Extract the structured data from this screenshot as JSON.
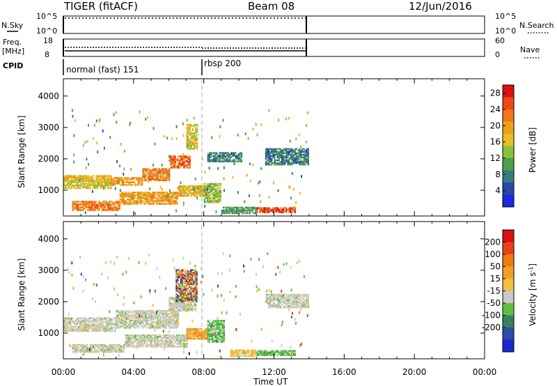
{
  "header": {
    "title": "TIGER (fitACF)",
    "beam": "Beam 08",
    "date": "12/Jun/2016"
  },
  "params_panel": {
    "nsky_label": "N.Sky",
    "nsky_ticks": [
      "10^5",
      "10^0"
    ],
    "nsearch_label": "N.Search",
    "nsearch_ticks": [
      "10^5",
      "10^0"
    ],
    "freq_label": "Freq.",
    "freq_unit": "[MHz]",
    "freq_ticks": [
      "18",
      "8"
    ],
    "nave_label": "Nave",
    "nave_ticks": [
      "60",
      "0"
    ]
  },
  "cpid": {
    "label": "CPID",
    "modes": [
      {
        "name": "normal (fast) 151",
        "start_hour": 0
      },
      {
        "name": "rbsp 200",
        "start_hour": 8
      }
    ]
  },
  "chart_data": [
    {
      "type": "heatmap",
      "panel": "power",
      "xlabel": "",
      "ylabel": "Slant Range [km]",
      "xlim": [
        0,
        24
      ],
      "ylim": [
        180,
        4550
      ],
      "yticks": [
        1000,
        2000,
        3000,
        4000
      ],
      "data_end_hour": 14,
      "colorbar": {
        "label": "Power [dB]",
        "ticks": [
          4,
          8,
          12,
          16,
          20,
          24,
          28
        ],
        "range": [
          0,
          30
        ],
        "colors": [
          "#1a2adc",
          "#2848a8",
          "#3a7c7c",
          "#48a050",
          "#88c040",
          "#e6c020",
          "#f0a018",
          "#f07818",
          "#ee4818",
          "#dd1010"
        ]
      },
      "regions": [
        {
          "t0": 0.0,
          "t1": 2.7,
          "r0": 1300,
          "r1": 1480,
          "level": 18
        },
        {
          "t0": 0.0,
          "t1": 2.7,
          "r0": 1050,
          "r1": 1300,
          "level": 16
        },
        {
          "t0": 2.7,
          "t1": 4.5,
          "r0": 1150,
          "r1": 1380,
          "level": 20
        },
        {
          "t0": 4.5,
          "t1": 6.0,
          "r0": 1300,
          "r1": 1700,
          "level": 22
        },
        {
          "t0": 6.0,
          "t1": 7.2,
          "r0": 1700,
          "r1": 2100,
          "level": 24
        },
        {
          "t0": 7.0,
          "t1": 7.6,
          "r0": 2300,
          "r1": 3100,
          "level": 16
        },
        {
          "t0": 0.5,
          "t1": 3.2,
          "r0": 350,
          "r1": 650,
          "level": 22
        },
        {
          "t0": 3.2,
          "t1": 6.5,
          "r0": 550,
          "r1": 950,
          "level": 20
        },
        {
          "t0": 6.5,
          "t1": 8.2,
          "r0": 800,
          "r1": 1150,
          "level": 18
        },
        {
          "t0": 8.0,
          "t1": 9.0,
          "r0": 600,
          "r1": 1200,
          "level": 14
        },
        {
          "t0": 11.0,
          "t1": 13.2,
          "r0": 280,
          "r1": 450,
          "level": 26
        },
        {
          "t0": 9.0,
          "t1": 11.0,
          "r0": 250,
          "r1": 450,
          "level": 10
        },
        {
          "t0": 11.5,
          "t1": 14.0,
          "r0": 1800,
          "r1": 2300,
          "level": 8
        },
        {
          "t0": 8.2,
          "t1": 10.2,
          "r0": 1900,
          "r1": 2200,
          "level": 8
        }
      ]
    },
    {
      "type": "heatmap",
      "panel": "velocity",
      "xlabel": "Time UT",
      "ylabel": "Slant Range [km]",
      "xlim": [
        0,
        24
      ],
      "ylim": [
        180,
        4550
      ],
      "yticks": [
        1000,
        2000,
        3000,
        4000
      ],
      "xticks": [
        "00:00",
        "04:00",
        "08:00",
        "12:00",
        "16:00",
        "20:00",
        "00:00"
      ],
      "data_end_hour": 14,
      "colorbar": {
        "label": "Velocity [m s^-1]",
        "ticks": [
          "200",
          "100",
          "50",
          "15",
          "-15",
          "-50",
          "-100",
          "-200"
        ],
        "colors": [
          "#1a2ad0",
          "#2c4ea8",
          "#3a8060",
          "#5ec040",
          "#c8c8c8",
          "#f0c040",
          "#f0a020",
          "#f07818",
          "#ee4018",
          "#dd1010"
        ]
      },
      "regions": [
        {
          "t0": 0.0,
          "t1": 3.0,
          "r0": 1050,
          "r1": 1480,
          "level": "gray"
        },
        {
          "t0": 3.0,
          "t1": 6.5,
          "r0": 1150,
          "r1": 1700,
          "level": "gray"
        },
        {
          "t0": 6.0,
          "t1": 7.5,
          "r0": 1700,
          "r1": 2150,
          "level": "gray"
        },
        {
          "t0": 0.5,
          "t1": 3.5,
          "r0": 380,
          "r1": 650,
          "level": "gray"
        },
        {
          "t0": 3.5,
          "t1": 7.0,
          "r0": 550,
          "r1": 950,
          "level": "gray"
        },
        {
          "t0": 7.0,
          "t1": 8.2,
          "r0": 800,
          "r1": 1150,
          "level": "orange"
        },
        {
          "t0": 8.2,
          "t1": 9.2,
          "r0": 700,
          "r1": 1400,
          "level": "green"
        },
        {
          "t0": 11.0,
          "t1": 13.2,
          "r0": 280,
          "r1": 450,
          "level": "green"
        },
        {
          "t0": 9.5,
          "t1": 11.0,
          "r0": 250,
          "r1": 450,
          "level": "yellow"
        },
        {
          "t0": 11.5,
          "t1": 14.0,
          "r0": 1800,
          "r1": 2250,
          "level": "gray"
        },
        {
          "t0": 6.4,
          "t1": 7.6,
          "r0": 2000,
          "r1": 3000,
          "level": "mixed"
        }
      ]
    }
  ]
}
